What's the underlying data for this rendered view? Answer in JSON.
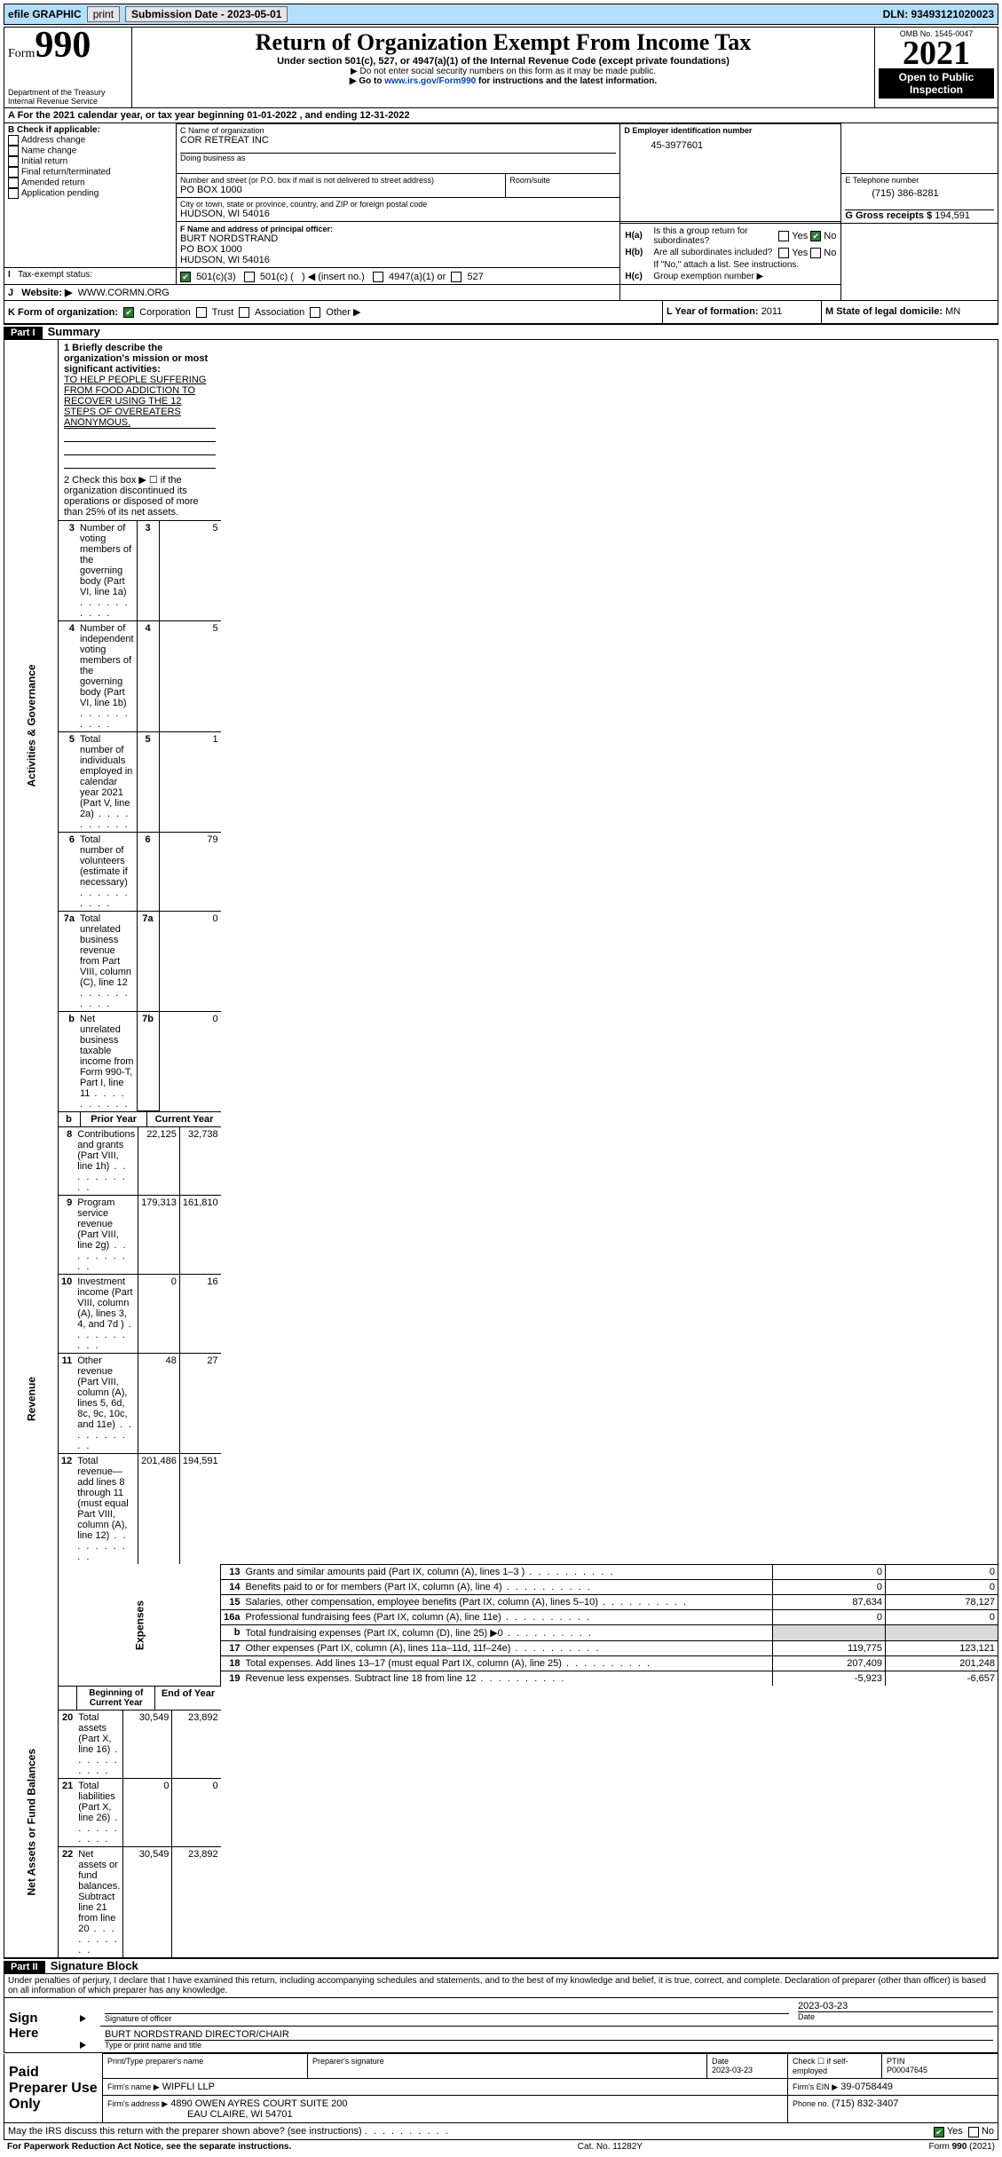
{
  "topbar": {
    "efile": "efile GRAPHIC",
    "print": "print",
    "subdate_label": "Submission Date - 2023-05-01",
    "dln": "DLN: 93493121020023"
  },
  "header": {
    "form": "Form",
    "num": "990",
    "dept1": "Department of the Treasury",
    "dept2": "Internal Revenue Service",
    "title": "Return of Organization Exempt From Income Tax",
    "sub1": "Under section 501(c), 527, or 4947(a)(1) of the Internal Revenue Code (except private foundations)",
    "sub2": "▶ Do not enter social security numbers on this form as it may be made public.",
    "sub3_pre": "▶ Go to ",
    "sub3_link": "www.irs.gov/Form990",
    "sub3_post": " for instructions and the latest information.",
    "omb": "OMB No. 1545-0047",
    "year": "2021",
    "inspect": "Open to Public Inspection"
  },
  "a_line": {
    "pre": "A For the 2021 calendar year, or tax year beginning ",
    "begin": "01-01-2022",
    "mid": "   , and ending ",
    "end": "12-31-2022"
  },
  "b": {
    "label": "B Check if applicable:",
    "items": [
      "Address change",
      "Name change",
      "Initial return",
      "Final return/terminated",
      "Amended return",
      "Application pending"
    ]
  },
  "c": {
    "name_lbl": "C Name of organization",
    "name": "COR RETREAT INC",
    "dba_lbl": "Doing business as",
    "addr_lbl": "Number and street (or P.O. box if mail is not delivered to street address)",
    "room_lbl": "Room/suite",
    "addr": "PO BOX 1000",
    "city_lbl": "City or town, state or province, country, and ZIP or foreign postal code",
    "city": "HUDSON, WI  54016"
  },
  "d": {
    "lbl": "D Employer identification number",
    "val": "45-3977601"
  },
  "e": {
    "lbl": "E Telephone number",
    "val": "(715) 386-8281"
  },
  "g": {
    "lbl": "G Gross receipts $",
    "val": "194,591"
  },
  "f": {
    "lbl": "F  Name and address of principal officer:",
    "l1": "BURT NORDSTRAND",
    "l2": "PO BOX 1000",
    "l3": "HUDSON, WI  54016"
  },
  "h": {
    "a1": "H(a)",
    "a2": "Is this a group return for subordinates?",
    "b1": "H(b)",
    "b2": "Are all subordinates included?",
    "note": "If \"No,\" attach a list. See instructions.",
    "c1": "H(c)",
    "c2": "Group exemption number ▶",
    "yes": "Yes",
    "no": "No"
  },
  "i": {
    "lbl": "I",
    "txt": "Tax-exempt status:",
    "c1": "501(c)(3)",
    "c2a": "501(c) (",
    "c2b": ") ◀ (insert no.)",
    "c3": "4947(a)(1) or",
    "c4": "527"
  },
  "j": {
    "lbl": "J",
    "txt": "Website: ▶",
    "val": "WWW.CORMN.ORG"
  },
  "k": {
    "lbl": "K Form of organization:",
    "c1": "Corporation",
    "c2": "Trust",
    "c3": "Association",
    "c4": "Other ▶"
  },
  "l": {
    "lbl": "L Year of formation:",
    "val": "2011"
  },
  "m": {
    "lbl": "M State of legal domicile:",
    "val": "MN"
  },
  "part1": {
    "title": "Part I",
    "heading": "Summary",
    "q1a": "1  Briefly describe the organization's mission or most significant activities:",
    "q1b": "TO HELP PEOPLE SUFFERING FROM FOOD ADDICTION TO RECOVER USING THE 12 STEPS OF OVEREATERS ANONYMOUS.",
    "q2": "2   Check this box ▶ ☐  if the organization discontinued its operations or disposed of more than 25% of its net assets.",
    "rows_gov": [
      {
        "n": "3",
        "t": "Number of voting members of the governing body (Part VI, line 1a)",
        "box": "3",
        "v": "5"
      },
      {
        "n": "4",
        "t": "Number of independent voting members of the governing body (Part VI, line 1b)",
        "box": "4",
        "v": "5"
      },
      {
        "n": "5",
        "t": "Total number of individuals employed in calendar year 2021 (Part V, line 2a)",
        "box": "5",
        "v": "1"
      },
      {
        "n": "6",
        "t": "Total number of volunteers (estimate if necessary)",
        "box": "6",
        "v": "79"
      },
      {
        "n": "7a",
        "t": "Total unrelated business revenue from Part VIII, column (C), line 12",
        "box": "7a",
        "v": "0"
      },
      {
        "n": "b",
        "t": "Net unrelated business taxable income from Form 990-T, Part I, line 11",
        "box": "7b",
        "v": "0"
      }
    ],
    "colhdr": {
      "py": "Prior Year",
      "cy": "Current Year"
    },
    "rows_rev": [
      {
        "n": "8",
        "t": "Contributions and grants (Part VIII, line 1h)",
        "py": "22,125",
        "cy": "32,738"
      },
      {
        "n": "9",
        "t": "Program service revenue (Part VIII, line 2g)",
        "py": "179,313",
        "cy": "161,810"
      },
      {
        "n": "10",
        "t": "Investment income (Part VIII, column (A), lines 3, 4, and 7d )",
        "py": "0",
        "cy": "16"
      },
      {
        "n": "11",
        "t": "Other revenue (Part VIII, column (A), lines 5, 6d, 8c, 9c, 10c, and 11e)",
        "py": "48",
        "cy": "27"
      },
      {
        "n": "12",
        "t": "Total revenue—add lines 8 through 11 (must equal Part VIII, column (A), line 12)",
        "py": "201,486",
        "cy": "194,591"
      }
    ],
    "rows_exp": [
      {
        "n": "13",
        "t": "Grants and similar amounts paid (Part IX, column (A), lines 1–3 )",
        "py": "0",
        "cy": "0"
      },
      {
        "n": "14",
        "t": "Benefits paid to or for members (Part IX, column (A), line 4)",
        "py": "0",
        "cy": "0"
      },
      {
        "n": "15",
        "t": "Salaries, other compensation, employee benefits (Part IX, column (A), lines 5–10)",
        "py": "87,634",
        "cy": "78,127"
      },
      {
        "n": "16a",
        "t": "Professional fundraising fees (Part IX, column (A), line 11e)",
        "py": "0",
        "cy": "0"
      },
      {
        "n": "b",
        "t": "Total fundraising expenses (Part IX, column (D), line 25) ▶0",
        "py": "",
        "cy": ""
      },
      {
        "n": "17",
        "t": "Other expenses (Part IX, column (A), lines 11a–11d, 11f–24e)",
        "py": "119,775",
        "cy": "123,121"
      },
      {
        "n": "18",
        "t": "Total expenses. Add lines 13–17 (must equal Part IX, column (A), line 25)",
        "py": "207,409",
        "cy": "201,248"
      },
      {
        "n": "19",
        "t": "Revenue less expenses. Subtract line 18 from line 12",
        "py": "-5,923",
        "cy": "-6,657"
      }
    ],
    "colhdr2": {
      "py": "Beginning of Current Year",
      "cy": "End of Year"
    },
    "rows_na": [
      {
        "n": "20",
        "t": "Total assets (Part X, line 16)",
        "py": "30,549",
        "cy": "23,892"
      },
      {
        "n": "21",
        "t": "Total liabilities (Part X, line 26)",
        "py": "0",
        "cy": "0"
      },
      {
        "n": "22",
        "t": "Net assets or fund balances. Subtract line 21 from line 20",
        "py": "30,549",
        "cy": "23,892"
      }
    ]
  },
  "part2": {
    "title": "Part II",
    "heading": "Signature Block",
    "decl": "Under penalties of perjury, I declare that I have examined this return, including accompanying schedules and statements, and to the best of my knowledge and belief, it is true, correct, and complete. Declaration of preparer (other than officer) is based on all information of which preparer has any knowledge.",
    "signhere": "Sign Here",
    "sigofficer": "Signature of officer",
    "date": "Date",
    "sigdate": "2023-03-23",
    "officer": "BURT NORDSTRAND  DIRECTOR/CHAIR",
    "typeprint": "Type or print name and title",
    "paid": "Paid Preparer Use Only",
    "pcol1": "Print/Type preparer's name",
    "pcol2": "Preparer's signature",
    "pcol3": "Date",
    "pdate": "2023-03-23",
    "pcheck": "Check ☐ if self-employed",
    "ptin_lbl": "PTIN",
    "ptin": "P00047645",
    "firm_lbl": "Firm's name    ▶",
    "firm": "WIPFLI LLP",
    "fein_lbl": "Firm's EIN ▶",
    "fein": "39-0758449",
    "faddr_lbl": "Firm's address ▶",
    "faddr1": "4890 OWEN AYRES COURT SUITE 200",
    "faddr2": "EAU CLAIRE, WI  54701",
    "fphone_lbl": "Phone no.",
    "fphone": "(715) 832-3407",
    "discuss": "May the IRS discuss this return with the preparer shown above? (see instructions)"
  },
  "footer": {
    "left": "For Paperwork Reduction Act Notice, see the separate instructions.",
    "mid": "Cat. No. 11282Y",
    "right": "Form 990 (2021)"
  },
  "sidelabels": {
    "gov": "Activities & Governance",
    "rev": "Revenue",
    "exp": "Expenses",
    "na": "Net Assets or Fund Balances"
  }
}
